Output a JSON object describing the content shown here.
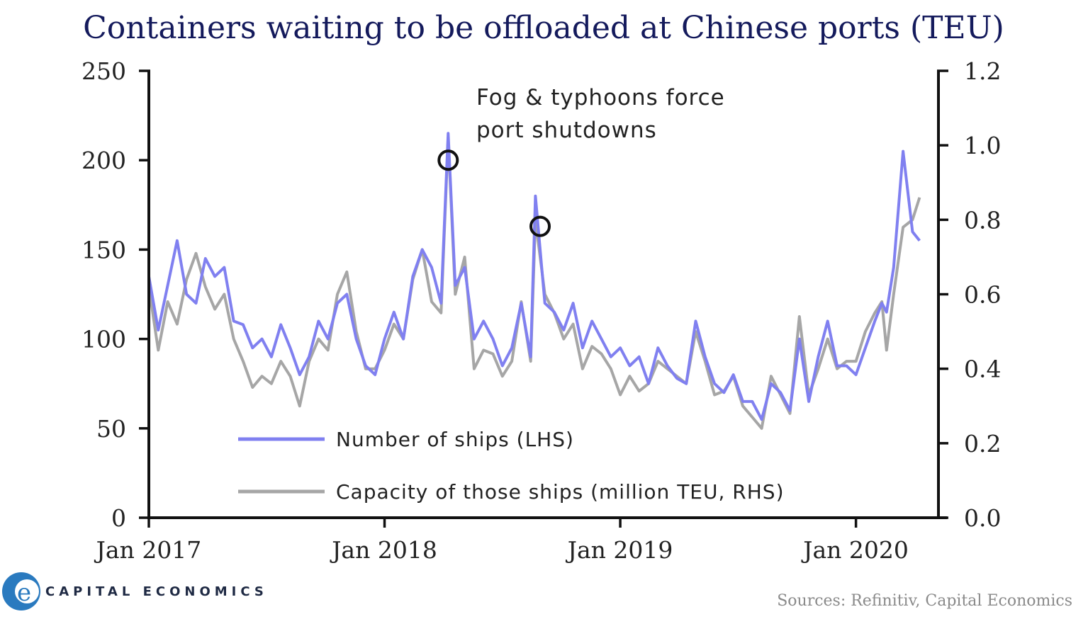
{
  "chart_data": {
    "type": "line",
    "title": "Containers waiting to be offloaded at Chinese ports (TEU)",
    "x_tick_labels": [
      "Jan 2017",
      "Jan 2018",
      "Jan 2019",
      "Jan 2020"
    ],
    "x_range": [
      2017.0,
      2020.35
    ],
    "y_left": {
      "ylim": [
        0,
        250
      ],
      "ticks": [
        "0",
        "50",
        "100",
        "150",
        "200",
        "250"
      ],
      "tick_values": [
        0,
        50,
        100,
        150,
        200,
        250
      ]
    },
    "y_right": {
      "ylim": [
        0.0,
        1.2
      ],
      "ticks": [
        "0.0",
        "0.2",
        "0.4",
        "0.6",
        "0.8",
        "1.0",
        "1.2"
      ],
      "tick_values": [
        0.0,
        0.2,
        0.4,
        0.6,
        0.8,
        1.0,
        1.2
      ]
    },
    "series": [
      {
        "name": "Number of ships (LHS)",
        "axis": "left",
        "color": "#8080f0",
        "x": [
          2017.0,
          2017.04,
          2017.08,
          2017.12,
          2017.16,
          2017.2,
          2017.24,
          2017.28,
          2017.32,
          2017.36,
          2017.4,
          2017.44,
          2017.48,
          2017.52,
          2017.56,
          2017.6,
          2017.64,
          2017.68,
          2017.72,
          2017.76,
          2017.8,
          2017.84,
          2017.88,
          2017.92,
          2017.96,
          2018.0,
          2018.04,
          2018.08,
          2018.12,
          2018.16,
          2018.2,
          2018.24,
          2018.27,
          2018.3,
          2018.34,
          2018.38,
          2018.42,
          2018.46,
          2018.5,
          2018.54,
          2018.58,
          2018.62,
          2018.64,
          2018.68,
          2018.72,
          2018.76,
          2018.8,
          2018.84,
          2018.88,
          2018.92,
          2018.96,
          2019.0,
          2019.04,
          2019.08,
          2019.12,
          2019.16,
          2019.2,
          2019.24,
          2019.28,
          2019.32,
          2019.36,
          2019.4,
          2019.44,
          2019.48,
          2019.52,
          2019.56,
          2019.6,
          2019.64,
          2019.68,
          2019.72,
          2019.76,
          2019.8,
          2019.84,
          2019.88,
          2019.92,
          2019.96,
          2020.0,
          2020.04,
          2020.08,
          2020.11,
          2020.13,
          2020.16,
          2020.2,
          2020.24,
          2020.27
        ],
        "values": [
          135,
          105,
          130,
          155,
          125,
          120,
          145,
          135,
          140,
          110,
          108,
          95,
          100,
          90,
          108,
          95,
          80,
          90,
          110,
          100,
          120,
          125,
          100,
          85,
          80,
          100,
          115,
          100,
          135,
          150,
          140,
          120,
          215,
          130,
          140,
          100,
          110,
          100,
          85,
          95,
          120,
          90,
          180,
          120,
          115,
          105,
          120,
          95,
          110,
          100,
          90,
          95,
          85,
          90,
          75,
          95,
          85,
          78,
          75,
          110,
          90,
          75,
          70,
          80,
          65,
          65,
          55,
          75,
          70,
          60,
          100,
          65,
          90,
          110,
          85,
          85,
          80,
          95,
          110,
          120,
          115,
          140,
          205,
          160,
          155
        ]
      },
      {
        "name": "Capacity of those ships (million TEU, RHS)",
        "axis": "right",
        "color": "#a6a6a6",
        "x": [
          2017.0,
          2017.04,
          2017.08,
          2017.12,
          2017.16,
          2017.2,
          2017.24,
          2017.28,
          2017.32,
          2017.36,
          2017.4,
          2017.44,
          2017.48,
          2017.52,
          2017.56,
          2017.6,
          2017.64,
          2017.68,
          2017.72,
          2017.76,
          2017.8,
          2017.84,
          2017.88,
          2017.92,
          2017.96,
          2018.0,
          2018.04,
          2018.08,
          2018.12,
          2018.16,
          2018.2,
          2018.24,
          2018.27,
          2018.3,
          2018.34,
          2018.38,
          2018.42,
          2018.46,
          2018.5,
          2018.54,
          2018.58,
          2018.62,
          2018.64,
          2018.68,
          2018.72,
          2018.76,
          2018.8,
          2018.84,
          2018.88,
          2018.92,
          2018.96,
          2019.0,
          2019.04,
          2019.08,
          2019.12,
          2019.16,
          2019.2,
          2019.24,
          2019.28,
          2019.32,
          2019.36,
          2019.4,
          2019.44,
          2019.48,
          2019.52,
          2019.56,
          2019.6,
          2019.64,
          2019.68,
          2019.72,
          2019.76,
          2019.8,
          2019.84,
          2019.88,
          2019.92,
          2019.96,
          2020.0,
          2020.04,
          2020.08,
          2020.11,
          2020.13,
          2020.16,
          2020.2,
          2020.24,
          2020.27
        ],
        "values": [
          0.62,
          0.45,
          0.58,
          0.52,
          0.64,
          0.71,
          0.62,
          0.56,
          0.6,
          0.48,
          0.42,
          0.35,
          0.38,
          0.36,
          0.42,
          0.38,
          0.3,
          0.42,
          0.48,
          0.45,
          0.6,
          0.66,
          0.5,
          0.4,
          0.4,
          0.45,
          0.52,
          0.48,
          0.64,
          0.72,
          0.58,
          0.55,
          1.02,
          0.6,
          0.7,
          0.4,
          0.45,
          0.44,
          0.38,
          0.42,
          0.58,
          0.42,
          0.8,
          0.6,
          0.55,
          0.48,
          0.52,
          0.4,
          0.46,
          0.44,
          0.4,
          0.33,
          0.38,
          0.34,
          0.36,
          0.42,
          0.4,
          0.38,
          0.36,
          0.5,
          0.42,
          0.33,
          0.34,
          0.38,
          0.3,
          0.27,
          0.24,
          0.38,
          0.33,
          0.28,
          0.54,
          0.33,
          0.4,
          0.48,
          0.4,
          0.42,
          0.42,
          0.5,
          0.55,
          0.58,
          0.45,
          0.6,
          0.78,
          0.8,
          0.86
        ]
      }
    ],
    "annotation": {
      "line1": "Fog & typhoons force",
      "line2": "port shutdowns"
    },
    "highlights": [
      {
        "x": 2018.27,
        "y": 200
      },
      {
        "x": 2018.66,
        "y": 163
      }
    ],
    "legend": {
      "placement": "bottom-left-inside"
    }
  },
  "source": "Sources: Refinitiv, Capital Economics",
  "brand": {
    "name": "CAPITAL ECONOMICS",
    "logo_letter": "e"
  },
  "colors": {
    "title": "#141a5c",
    "ships_line": "#8080f0",
    "capacity_line": "#a6a6a6",
    "logo": "#2a7abf"
  }
}
